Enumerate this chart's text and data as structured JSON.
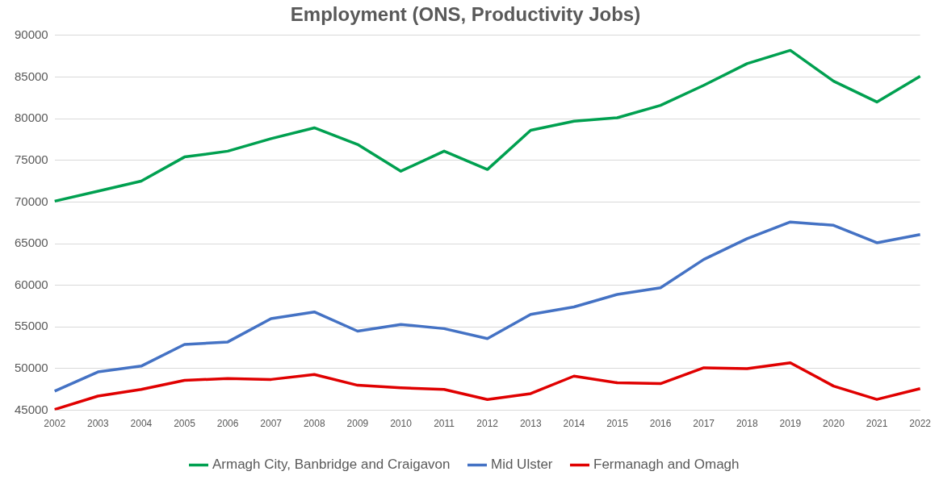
{
  "chart_data": {
    "type": "line",
    "title": "Employment (ONS, Productivity Jobs)",
    "categories": [
      "2002",
      "2003",
      "2004",
      "2005",
      "2006",
      "2007",
      "2008",
      "2009",
      "2010",
      "2011",
      "2012",
      "2013",
      "2014",
      "2015",
      "2016",
      "2017",
      "2018",
      "2019",
      "2020",
      "2021",
      "2022"
    ],
    "series": [
      {
        "name": "Armagh City, Banbridge and Craigavon",
        "color": "#00a050",
        "values": [
          70100,
          71300,
          72500,
          75400,
          76100,
          77600,
          78900,
          76900,
          73700,
          76100,
          73900,
          78600,
          79700,
          80100,
          81600,
          84000,
          86600,
          88200,
          84500,
          82000,
          85100
        ]
      },
      {
        "name": "Mid Ulster",
        "color": "#4472c4",
        "values": [
          47300,
          49600,
          50300,
          52900,
          53200,
          56000,
          56800,
          54500,
          55300,
          54800,
          53600,
          56500,
          57400,
          58900,
          59700,
          63100,
          65600,
          67600,
          67200,
          65100,
          66100
        ]
      },
      {
        "name": "Fermanagh and Omagh",
        "color": "#e00000",
        "values": [
          45100,
          46700,
          47500,
          48600,
          48800,
          48700,
          49300,
          48000,
          47700,
          47500,
          46300,
          47000,
          49100,
          48300,
          48200,
          50100,
          50000,
          50700,
          47900,
          46300,
          47600
        ]
      }
    ],
    "ylim": [
      45000,
      90000
    ],
    "yticks": [
      45000,
      50000,
      55000,
      60000,
      65000,
      70000,
      75000,
      80000,
      85000,
      90000
    ],
    "grid": "y",
    "legend": "bottom",
    "marker": "none",
    "line_style": "solid"
  }
}
